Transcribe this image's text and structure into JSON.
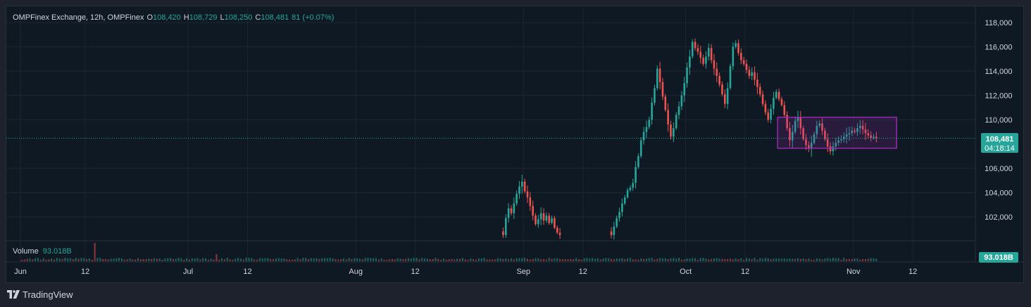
{
  "legend": {
    "symbol": "OMPFinex Exchange, 12h, OMPFinex",
    "o_label": "O",
    "o_value": "108,420",
    "h_label": "H",
    "h_value": "108,729",
    "l_label": "L",
    "l_value": "108,250",
    "c_label": "C",
    "c_value": "108,481",
    "change": "81 (+0.07%)"
  },
  "volume_legend": {
    "label": "Volume",
    "value": "93.018B"
  },
  "price_axis": {
    "ticks": [
      "118,000",
      "116,000",
      "114,000",
      "112,000",
      "110,000",
      "106,000",
      "104,000",
      "102,000"
    ],
    "last_price": "108,481",
    "countdown": "04:18:14",
    "volume_badge": "93.018B"
  },
  "time_axis": {
    "ticks": [
      "Jun",
      "12",
      "Jul",
      "12",
      "Aug",
      "12",
      "Sep",
      "12",
      "Oct",
      "12",
      "Nov",
      "12"
    ]
  },
  "brand": {
    "name": "TradingView",
    "logo": "tradingview-logo-icon"
  },
  "colors": {
    "up": "#26a69a",
    "down": "#ef5350",
    "background": "#0f1923",
    "grid": "#1c2530",
    "rectangle": "#9c27b0"
  },
  "chart_data": {
    "type": "candlestick",
    "interval": "12h",
    "price_range": [
      100400,
      118800
    ],
    "x": [
      "2025-05-31",
      "2025-06-12",
      "2025-07-01",
      "2025-07-12",
      "2025-08-01",
      "2025-08-12",
      "2025-09-01",
      "2025-09-12",
      "2025-10-01",
      "2025-10-12",
      "2025-11-01",
      "2025-11-12"
    ],
    "close_segments": [
      {
        "start": "2025-08-28",
        "closes": [
          100500,
          101900,
          102700,
          102300,
          103100,
          103900,
          104500,
          104900,
          104100,
          103600,
          102900,
          102100,
          101400,
          101800,
          102300,
          101700,
          102100,
          101500,
          101900,
          101100,
          100700,
          100500
        ]
      },
      {
        "start": "2025-09-17",
        "closes": [
          100500,
          101200,
          101900,
          102400,
          103100,
          103600,
          104200,
          104400,
          104800,
          106100,
          107000,
          108300,
          109000,
          109400,
          110000,
          111400,
          112600,
          114200,
          113100,
          111900,
          110800,
          109600,
          108600,
          109300,
          110400,
          111100,
          112000,
          113000,
          114300,
          115200,
          116400,
          115900,
          115600,
          115100,
          114600,
          115200,
          115900,
          114900,
          114200,
          113600,
          112900,
          112100,
          111300,
          112600,
          114400,
          116000,
          116300,
          115500,
          114900,
          114600,
          114100,
          113600,
          113900,
          113300,
          112700,
          112100,
          111300,
          110600,
          110000,
          110900,
          111800,
          112300,
          111700,
          111200,
          110400,
          109300,
          108300,
          109000,
          109900,
          110200,
          109300,
          108400,
          107900,
          107600,
          108100,
          108800,
          109500,
          109700,
          109100,
          108400,
          107800,
          107400,
          107800,
          108100,
          108300,
          108400,
          108600,
          108800,
          108900,
          109100,
          109000,
          109300,
          109500,
          109200,
          108900,
          108700,
          108500,
          108600,
          108481
        ]
      }
    ],
    "volume_last": "93.018B",
    "last": {
      "open": 108420,
      "high": 108729,
      "low": 108250,
      "close": 108481,
      "change": 81,
      "change_pct": "+0.07%"
    },
    "drawing": {
      "type": "rectangle",
      "price_top": 110200,
      "price_bottom": 107650,
      "time_start": "2025-10-18",
      "time_end": "2025-11-09"
    }
  }
}
